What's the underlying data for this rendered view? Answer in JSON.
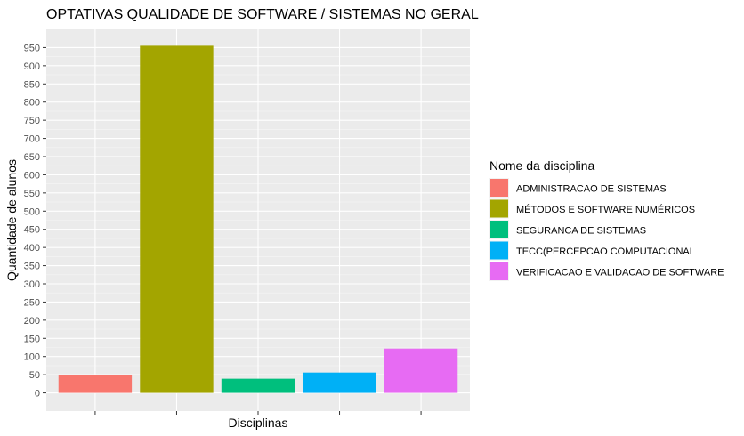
{
  "chart_data": {
    "type": "bar",
    "title": "OPTATIVAS QUALIDADE DE SOFTWARE / SISTEMAS NO GERAL",
    "xlabel": "Disciplinas",
    "ylabel": "Quantidade de alunos",
    "categories": [
      "ADMINISTRACAO DE SISTEMAS",
      "MÉTODOS E SOFTWARE NUMÉRICOS",
      "SEGURANCA DE SISTEMAS",
      "TECC(PERCEPCAO COMPUTACIONAL",
      "VERIFICACAO E VALIDACAO DE SOFTWARE"
    ],
    "values": [
      49,
      955,
      39,
      56,
      122
    ],
    "colors": [
      "#F8766D",
      "#A3A500",
      "#00BF7D",
      "#00B0F6",
      "#E76BF3"
    ],
    "ylim": [
      -50,
      1000
    ],
    "yticks": [
      0,
      50,
      100,
      150,
      200,
      250,
      300,
      350,
      400,
      450,
      500,
      550,
      600,
      650,
      700,
      750,
      800,
      850,
      900,
      950
    ],
    "x_tick_labels_shown": false,
    "grid": true,
    "legend": {
      "title": "Nome da disciplina",
      "position": "right"
    }
  }
}
